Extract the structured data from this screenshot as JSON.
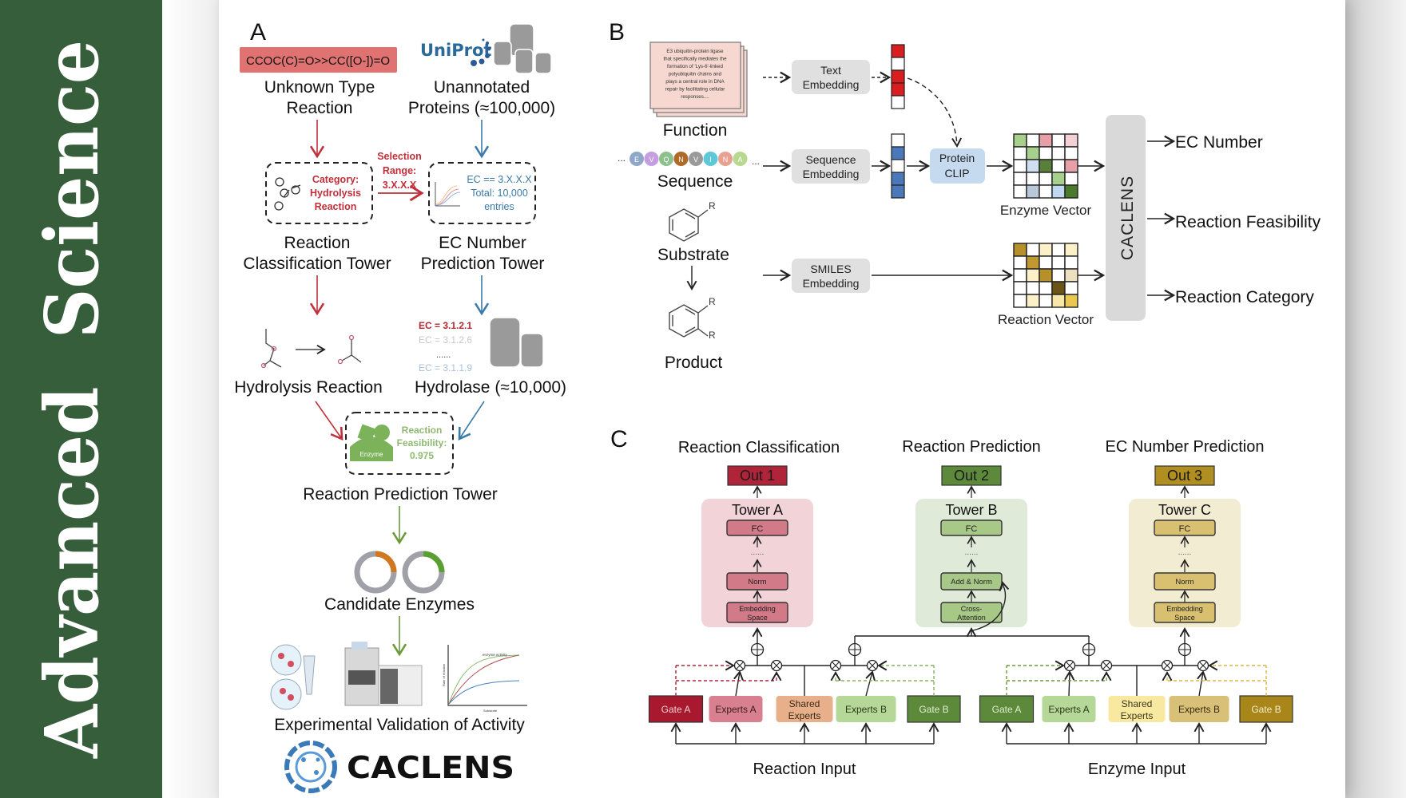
{
  "banner": {
    "title": "Advanced  Science",
    "color": "#365e3b"
  },
  "panel_a": {
    "label": "A",
    "smiles": "CCOC(C)=O>>CC([O-])=O",
    "uniprot_logo": "UniProt",
    "unknown_reaction": [
      "Unknown Type",
      "Reaction"
    ],
    "unannotated": [
      "Unannotated",
      "Proteins (≈100,000)"
    ],
    "category": [
      "Category:",
      "Hydrolysis",
      "Reaction"
    ],
    "selection": [
      "Selection",
      "Range:",
      "3.X.X.X"
    ],
    "ec_filter": [
      "EC == 3.X.X.X",
      "Total: 10,000",
      "entries"
    ],
    "rc_tower": [
      "Reaction",
      "Classification Tower"
    ],
    "ec_tower": [
      "EC Number",
      "Prediction Tower"
    ],
    "ec_list": [
      "EC = 3.1.2.1",
      "EC = 3.1.2.6",
      "......",
      "EC = 3.1.1.9"
    ],
    "hydrolysis": "Hydrolysis Reaction",
    "hydrolase": "Hydrolase (≈10,000)",
    "enzyme_label": "Enzyme",
    "feasibility": [
      "Reaction",
      "Feasibility:",
      "0.975"
    ],
    "rp_tower": "Reaction Prediction Tower",
    "candidates": "Candidate Enzymes",
    "chart_title": "enzyme activity",
    "chart_y": "Rate of reaction",
    "chart_x": "Substrate",
    "validation": "Experimental Validation of Activity",
    "logo": "CACLENS",
    "colors": {
      "red": "#c0303a",
      "blue": "#3a7aa8",
      "green": "#6a9a3a",
      "smiles_bg": "#e07272"
    }
  },
  "panel_b": {
    "label": "B",
    "function_text": [
      "E3 ubiquitin-protein ligase",
      "that specifically mediates the",
      "formation of 'Lys-6'-linked",
      "polyubiquitin chains and",
      "plays a central role in DNA",
      "repair by facilitating cellular",
      "responses...."
    ],
    "function": "Function",
    "sequence": "Sequence",
    "sequence_letters": [
      {
        "ch": "E",
        "color": "#8fa8c8"
      },
      {
        "ch": "V",
        "color": "#c49ee0"
      },
      {
        "ch": "Q",
        "color": "#8cc08c"
      },
      {
        "ch": "N",
        "color": "#b06a28"
      },
      {
        "ch": "V",
        "color": "#9a9a9a"
      },
      {
        "ch": "I",
        "color": "#5ec8d8"
      },
      {
        "ch": "N",
        "color": "#e8a090"
      },
      {
        "ch": "A",
        "color": "#b8d890"
      }
    ],
    "ellipsis": "...",
    "substrate": "Substrate",
    "product": "Product",
    "r_group": "R",
    "text_embedding": [
      "Text",
      "Embedding"
    ],
    "sequence_embedding": [
      "Sequence",
      "Embedding"
    ],
    "smiles_embedding": [
      "SMILES",
      "Embedding"
    ],
    "protein_clip": [
      "Protein",
      "CLIP"
    ],
    "text_vector": [
      "#d81e1e",
      "#ffffff",
      "#d81e1e",
      "#d81e1e",
      "#ffffff"
    ],
    "seq_vector": [
      "#ffffff",
      "#4a78b8",
      "#ffffff",
      "#4a78b8",
      "#4a78b8"
    ],
    "enzyme_vector": "Enzyme Vector",
    "reaction_vector": "Reaction Vector",
    "enzyme_matrix": [
      [
        "#a8d08d",
        "#ffffff",
        "#e8a0a8",
        "#ffffff",
        "#f4d0d4"
      ],
      [
        "#ffffff",
        "#a8d08d",
        "#ffffff",
        "#ffffff",
        "#ffffff"
      ],
      [
        "#ffffff",
        "#d0dff0",
        "#5a7f3a",
        "#ffffff",
        "#e8a0a8"
      ],
      [
        "#ffffff",
        "#ffffff",
        "#ffffff",
        "#a8d08d",
        "#ffffff"
      ],
      [
        "#ffffff",
        "#b8c8d8",
        "#ffffff",
        "#c0d8f0",
        "#4a7a2a"
      ]
    ],
    "reaction_matrix": [
      [
        "#b8902a",
        "#ffffff",
        "#fbf0c8",
        "#ffffff",
        "#fbf0c8"
      ],
      [
        "#ffffff",
        "#c09a30",
        "#ffffff",
        "#ffffff",
        "#ffffff"
      ],
      [
        "#ffffff",
        "#fbf0c8",
        "#b8902a",
        "#ffffff",
        "#ede0c0"
      ],
      [
        "#ffffff",
        "#ffffff",
        "#ffffff",
        "#6b5418",
        "#ffffff"
      ],
      [
        "#ffffff",
        "#fbf0c8",
        "#ffffff",
        "#f8e8a8",
        "#e8c850"
      ]
    ],
    "caclens": "CACLENS",
    "outputs": [
      "EC Number",
      "Reaction Feasibility",
      "Reaction Category"
    ]
  },
  "panel_c": {
    "label": "C",
    "titles": [
      "Reaction Classification",
      "Reaction Prediction",
      "EC Number Prediction"
    ],
    "outs": [
      {
        "label": "Out 1",
        "color": "#b0243a"
      },
      {
        "label": "Out 2",
        "color": "#5d8a3a"
      },
      {
        "label": "Out 3",
        "color": "#b08e20"
      }
    ],
    "towers": [
      {
        "title": "Tower A",
        "bg": "#f2d3d8",
        "box": "#d27a88",
        "layers": [
          "FC",
          "Norm",
          "Embedding",
          "Space"
        ]
      },
      {
        "title": "Tower B",
        "bg": "#dfeBd8",
        "box": "#a8c888",
        "layers": [
          "FC",
          "Add & Norm",
          "Cross-",
          "Attention"
        ]
      },
      {
        "title": "Tower C",
        "bg": "#f2ecd2",
        "box": "#d8c070",
        "layers": [
          "FC",
          "Norm",
          "Embedding",
          "Space"
        ]
      }
    ],
    "dots": "......",
    "reaction_group": [
      {
        "label": [
          "Gate A"
        ],
        "color": "#a8182e",
        "text": "#f0d0d0"
      },
      {
        "label": [
          "Experts A"
        ],
        "color": "#d98090",
        "text": "#3a1a1a"
      },
      {
        "label": [
          "Shared",
          "Experts"
        ],
        "color": "#e8b08a",
        "text": "#3a2a1a"
      },
      {
        "label": [
          "Experts B"
        ],
        "color": "#b5d898",
        "text": "#2a3a1a"
      },
      {
        "label": [
          "Gate B"
        ],
        "color": "#5d8a3a",
        "text": "#e0ecd0"
      }
    ],
    "enzyme_group": [
      {
        "label": [
          "Gate A"
        ],
        "color": "#5d8a3a",
        "text": "#e0ecd0"
      },
      {
        "label": [
          "Experts A"
        ],
        "color": "#b5d898",
        "text": "#2a3a1a"
      },
      {
        "label": [
          "Shared",
          "Experts"
        ],
        "color": "#f8e8a0",
        "text": "#3a3a1a"
      },
      {
        "label": [
          "Experts B"
        ],
        "color": "#d8c078",
        "text": "#3a2a0a"
      },
      {
        "label": [
          "Gate B"
        ],
        "color": "#a8861a",
        "text": "#f5ecc8"
      }
    ],
    "reaction_input": "Reaction Input",
    "enzyme_input": "Enzyme Input"
  }
}
